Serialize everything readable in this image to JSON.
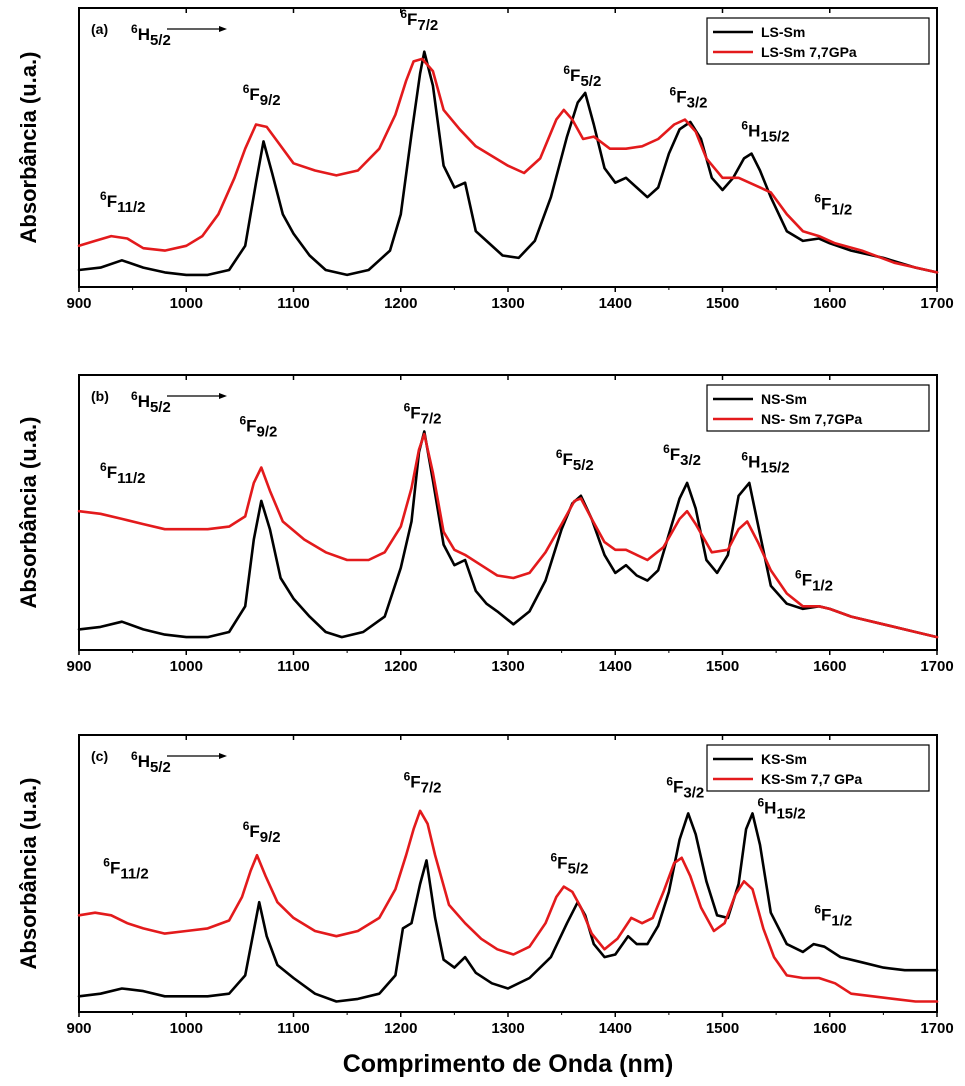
{
  "chart_data": [
    {
      "type": "line",
      "panel_label": "(a)",
      "ylabel": "Absorbância (u.a.)",
      "xlabel": "",
      "xlim": [
        900,
        1700
      ],
      "xticks": [
        900,
        1000,
        1100,
        1200,
        1300,
        1400,
        1500,
        1600,
        1700
      ],
      "yticks_shown": false,
      "legend_position": "top-right",
      "series": [
        {
          "name": "LS-Sm",
          "color": "#000000",
          "x": [
            900,
            920,
            940,
            960,
            980,
            1000,
            1020,
            1040,
            1055,
            1065,
            1072,
            1080,
            1090,
            1100,
            1115,
            1130,
            1150,
            1170,
            1190,
            1200,
            1210,
            1218,
            1222,
            1230,
            1240,
            1250,
            1260,
            1270,
            1280,
            1295,
            1310,
            1325,
            1340,
            1355,
            1365,
            1372,
            1380,
            1390,
            1400,
            1410,
            1420,
            1430,
            1440,
            1450,
            1460,
            1470,
            1480,
            1490,
            1500,
            1510,
            1520,
            1527,
            1535,
            1545,
            1560,
            1575,
            1590,
            1600,
            1620,
            1650,
            1680,
            1700
          ],
          "y": [
            0.02,
            0.03,
            0.06,
            0.03,
            0.01,
            0.0,
            0.0,
            0.02,
            0.12,
            0.38,
            0.55,
            0.42,
            0.25,
            0.17,
            0.08,
            0.02,
            0.0,
            0.02,
            0.1,
            0.25,
            0.58,
            0.83,
            0.92,
            0.78,
            0.45,
            0.36,
            0.38,
            0.18,
            0.14,
            0.08,
            0.07,
            0.14,
            0.32,
            0.57,
            0.71,
            0.75,
            0.62,
            0.44,
            0.38,
            0.4,
            0.36,
            0.32,
            0.36,
            0.5,
            0.6,
            0.63,
            0.56,
            0.4,
            0.35,
            0.4,
            0.48,
            0.5,
            0.43,
            0.32,
            0.18,
            0.14,
            0.15,
            0.13,
            0.1,
            0.07,
            0.03,
            0.01
          ]
        },
        {
          "name": "LS-Sm 7,7GPa",
          "color": "#e31a1c",
          "x": [
            900,
            915,
            930,
            945,
            960,
            980,
            1000,
            1015,
            1030,
            1045,
            1055,
            1065,
            1075,
            1085,
            1100,
            1120,
            1140,
            1160,
            1180,
            1195,
            1205,
            1212,
            1220,
            1230,
            1240,
            1255,
            1270,
            1285,
            1300,
            1315,
            1330,
            1345,
            1352,
            1360,
            1370,
            1380,
            1395,
            1410,
            1425,
            1440,
            1455,
            1465,
            1475,
            1485,
            1500,
            1515,
            1530,
            1545,
            1560,
            1575,
            1590,
            1605,
            1630,
            1660,
            1700
          ],
          "y": [
            0.12,
            0.14,
            0.16,
            0.15,
            0.11,
            0.1,
            0.12,
            0.16,
            0.25,
            0.4,
            0.52,
            0.62,
            0.61,
            0.55,
            0.46,
            0.43,
            0.41,
            0.43,
            0.52,
            0.66,
            0.8,
            0.88,
            0.89,
            0.84,
            0.68,
            0.6,
            0.53,
            0.49,
            0.45,
            0.42,
            0.48,
            0.64,
            0.68,
            0.64,
            0.56,
            0.57,
            0.52,
            0.52,
            0.53,
            0.56,
            0.62,
            0.64,
            0.59,
            0.48,
            0.4,
            0.4,
            0.37,
            0.34,
            0.25,
            0.18,
            0.16,
            0.13,
            0.1,
            0.05,
            0.01
          ]
        }
      ],
      "annotations": [
        {
          "base": "6",
          "main": "H",
          "sub": "5/2",
          "x": 900,
          "y": "top",
          "arrow": true
        },
        {
          "base": "6",
          "main": "F",
          "sub": "11/2",
          "x": 942,
          "y": 0.28
        },
        {
          "base": "6",
          "main": "F",
          "sub": "9/2",
          "x": 1075,
          "y": 0.72
        },
        {
          "base": "6",
          "main": "F",
          "sub": "7/2",
          "x": 1222,
          "y": 1.03
        },
        {
          "base": "6",
          "main": "F",
          "sub": "5/2",
          "x": 1374,
          "y": 0.8
        },
        {
          "base": "6",
          "main": "F",
          "sub": "3/2",
          "x": 1473,
          "y": 0.71
        },
        {
          "base": "6",
          "main": "H",
          "sub": "15/2",
          "x": 1540,
          "y": 0.57
        },
        {
          "base": "6",
          "main": "F",
          "sub": "1/2",
          "x": 1608,
          "y": 0.27
        }
      ]
    },
    {
      "type": "line",
      "panel_label": "(b)",
      "ylabel": "Absorbância (u.a.)",
      "xlabel": "",
      "xlim": [
        900,
        1700
      ],
      "xticks": [
        900,
        1000,
        1100,
        1200,
        1300,
        1400,
        1500,
        1600,
        1700
      ],
      "yticks_shown": false,
      "legend_position": "top-right",
      "series": [
        {
          "name": "NS-Sm",
          "color": "#000000",
          "x": [
            900,
            920,
            940,
            960,
            980,
            1000,
            1020,
            1040,
            1055,
            1063,
            1070,
            1078,
            1088,
            1100,
            1115,
            1130,
            1145,
            1165,
            1185,
            1200,
            1210,
            1217,
            1222,
            1230,
            1240,
            1250,
            1260,
            1270,
            1280,
            1290,
            1305,
            1320,
            1335,
            1350,
            1360,
            1368,
            1378,
            1390,
            1400,
            1410,
            1420,
            1430,
            1440,
            1450,
            1460,
            1467,
            1475,
            1485,
            1495,
            1505,
            1515,
            1525,
            1535,
            1545,
            1560,
            1575,
            1590,
            1600,
            1620,
            1650,
            1680,
            1700
          ],
          "y": [
            0.03,
            0.04,
            0.06,
            0.03,
            0.01,
            0.0,
            0.0,
            0.02,
            0.12,
            0.38,
            0.53,
            0.42,
            0.23,
            0.15,
            0.08,
            0.02,
            0.0,
            0.02,
            0.08,
            0.27,
            0.45,
            0.72,
            0.8,
            0.61,
            0.36,
            0.28,
            0.3,
            0.18,
            0.13,
            0.1,
            0.05,
            0.1,
            0.22,
            0.42,
            0.52,
            0.55,
            0.46,
            0.32,
            0.25,
            0.28,
            0.24,
            0.22,
            0.26,
            0.4,
            0.54,
            0.6,
            0.5,
            0.3,
            0.25,
            0.32,
            0.55,
            0.6,
            0.4,
            0.2,
            0.13,
            0.11,
            0.12,
            0.11,
            0.08,
            0.05,
            0.02,
            0.0
          ]
        },
        {
          "name": "NS- Sm 7,7GPa",
          "color": "#e31a1c",
          "x": [
            900,
            920,
            940,
            960,
            980,
            1000,
            1020,
            1040,
            1055,
            1063,
            1070,
            1078,
            1090,
            1110,
            1130,
            1150,
            1170,
            1185,
            1200,
            1210,
            1217,
            1222,
            1230,
            1240,
            1250,
            1260,
            1275,
            1290,
            1305,
            1320,
            1335,
            1350,
            1362,
            1368,
            1378,
            1390,
            1400,
            1410,
            1420,
            1430,
            1445,
            1460,
            1467,
            1475,
            1490,
            1505,
            1515,
            1523,
            1533,
            1545,
            1560,
            1575,
            1590,
            1600,
            1620,
            1650,
            1680,
            1700
          ],
          "y": [
            0.49,
            0.48,
            0.46,
            0.44,
            0.42,
            0.42,
            0.42,
            0.43,
            0.47,
            0.6,
            0.66,
            0.57,
            0.45,
            0.38,
            0.33,
            0.3,
            0.3,
            0.33,
            0.43,
            0.58,
            0.73,
            0.79,
            0.64,
            0.41,
            0.34,
            0.32,
            0.28,
            0.24,
            0.23,
            0.25,
            0.33,
            0.44,
            0.53,
            0.54,
            0.46,
            0.37,
            0.34,
            0.34,
            0.32,
            0.3,
            0.35,
            0.46,
            0.49,
            0.44,
            0.33,
            0.34,
            0.42,
            0.45,
            0.37,
            0.26,
            0.17,
            0.12,
            0.12,
            0.11,
            0.08,
            0.05,
            0.02,
            0.0
          ]
        }
      ],
      "annotations": [
        {
          "base": "6",
          "main": "H",
          "sub": "5/2",
          "x": 900,
          "y": "top",
          "arrow": true
        },
        {
          "base": "6",
          "main": "F",
          "sub": "11/2",
          "x": 942,
          "y": 0.62
        },
        {
          "base": "6",
          "main": "F",
          "sub": "9/2",
          "x": 1072,
          "y": 0.8
        },
        {
          "base": "6",
          "main": "F",
          "sub": "7/2",
          "x": 1225,
          "y": 0.85
        },
        {
          "base": "6",
          "main": "F",
          "sub": "5/2",
          "x": 1367,
          "y": 0.67
        },
        {
          "base": "6",
          "main": "F",
          "sub": "3/2",
          "x": 1467,
          "y": 0.69
        },
        {
          "base": "6",
          "main": "H",
          "sub": "15/2",
          "x": 1540,
          "y": 0.66
        },
        {
          "base": "6",
          "main": "F",
          "sub": "1/2",
          "x": 1590,
          "y": 0.2
        }
      ]
    },
    {
      "type": "line",
      "panel_label": "(c)",
      "ylabel": "Absorbância (u.a.)",
      "xlabel": "Comprimento de Onda (nm)",
      "xlim": [
        900,
        1700
      ],
      "xticks": [
        900,
        1000,
        1100,
        1200,
        1300,
        1400,
        1500,
        1600,
        1700
      ],
      "yticks_shown": false,
      "legend_position": "top-right",
      "series": [
        {
          "name": "KS-Sm",
          "color": "#000000",
          "x": [
            900,
            920,
            940,
            960,
            980,
            1000,
            1020,
            1040,
            1055,
            1062,
            1068,
            1075,
            1085,
            1100,
            1120,
            1140,
            1160,
            1180,
            1195,
            1202,
            1210,
            1218,
            1224,
            1232,
            1240,
            1250,
            1260,
            1270,
            1285,
            1300,
            1320,
            1340,
            1355,
            1365,
            1372,
            1380,
            1390,
            1400,
            1412,
            1420,
            1430,
            1440,
            1450,
            1460,
            1468,
            1475,
            1485,
            1495,
            1505,
            1515,
            1522,
            1528,
            1535,
            1545,
            1560,
            1575,
            1585,
            1595,
            1610,
            1630,
            1650,
            1670,
            1690,
            1700
          ],
          "y": [
            0.02,
            0.03,
            0.05,
            0.04,
            0.02,
            0.02,
            0.02,
            0.03,
            0.1,
            0.25,
            0.38,
            0.25,
            0.14,
            0.09,
            0.03,
            0.0,
            0.01,
            0.03,
            0.1,
            0.28,
            0.3,
            0.45,
            0.54,
            0.32,
            0.16,
            0.13,
            0.17,
            0.11,
            0.07,
            0.05,
            0.09,
            0.17,
            0.3,
            0.38,
            0.33,
            0.22,
            0.17,
            0.18,
            0.25,
            0.22,
            0.22,
            0.29,
            0.42,
            0.62,
            0.72,
            0.64,
            0.46,
            0.33,
            0.32,
            0.45,
            0.66,
            0.72,
            0.6,
            0.34,
            0.22,
            0.19,
            0.22,
            0.21,
            0.17,
            0.15,
            0.13,
            0.12,
            0.12,
            0.12
          ]
        },
        {
          "name": "KS-Sm 7,7 GPa",
          "color": "#e31a1c",
          "x": [
            900,
            915,
            930,
            945,
            960,
            980,
            1000,
            1020,
            1040,
            1052,
            1060,
            1066,
            1074,
            1085,
            1100,
            1120,
            1140,
            1160,
            1180,
            1195,
            1205,
            1212,
            1218,
            1225,
            1232,
            1245,
            1260,
            1275,
            1290,
            1305,
            1320,
            1335,
            1345,
            1352,
            1360,
            1368,
            1378,
            1390,
            1402,
            1415,
            1425,
            1435,
            1445,
            1455,
            1462,
            1470,
            1480,
            1492,
            1502,
            1512,
            1520,
            1528,
            1538,
            1548,
            1560,
            1575,
            1590,
            1605,
            1620,
            1640,
            1660,
            1680,
            1700
          ],
          "y": [
            0.33,
            0.34,
            0.33,
            0.3,
            0.28,
            0.26,
            0.27,
            0.28,
            0.31,
            0.4,
            0.5,
            0.56,
            0.48,
            0.38,
            0.32,
            0.27,
            0.25,
            0.27,
            0.32,
            0.43,
            0.56,
            0.66,
            0.73,
            0.68,
            0.56,
            0.37,
            0.3,
            0.24,
            0.2,
            0.18,
            0.21,
            0.3,
            0.4,
            0.44,
            0.42,
            0.36,
            0.26,
            0.2,
            0.24,
            0.32,
            0.3,
            0.32,
            0.42,
            0.53,
            0.55,
            0.48,
            0.36,
            0.27,
            0.3,
            0.41,
            0.46,
            0.43,
            0.28,
            0.17,
            0.1,
            0.09,
            0.09,
            0.07,
            0.03,
            0.02,
            0.01,
            0.0,
            0.0
          ]
        }
      ],
      "annotations": [
        {
          "base": "6",
          "main": "H",
          "sub": "5/2",
          "x": 900,
          "y": "top",
          "arrow": true
        },
        {
          "base": "6",
          "main": "F",
          "sub": "11/2",
          "x": 945,
          "y": 0.49
        },
        {
          "base": "6",
          "main": "F",
          "sub": "9/2",
          "x": 1075,
          "y": 0.63
        },
        {
          "base": "6",
          "main": "F",
          "sub": "7/2",
          "x": 1225,
          "y": 0.82
        },
        {
          "base": "6",
          "main": "F",
          "sub": "5/2",
          "x": 1362,
          "y": 0.51
        },
        {
          "base": "6",
          "main": "F",
          "sub": "3/2",
          "x": 1470,
          "y": 0.8
        },
        {
          "base": "6",
          "main": "H",
          "sub": "15/2",
          "x": 1555,
          "y": 0.72
        },
        {
          "base": "6",
          "main": "F",
          "sub": "1/2",
          "x": 1608,
          "y": 0.31
        }
      ]
    }
  ]
}
